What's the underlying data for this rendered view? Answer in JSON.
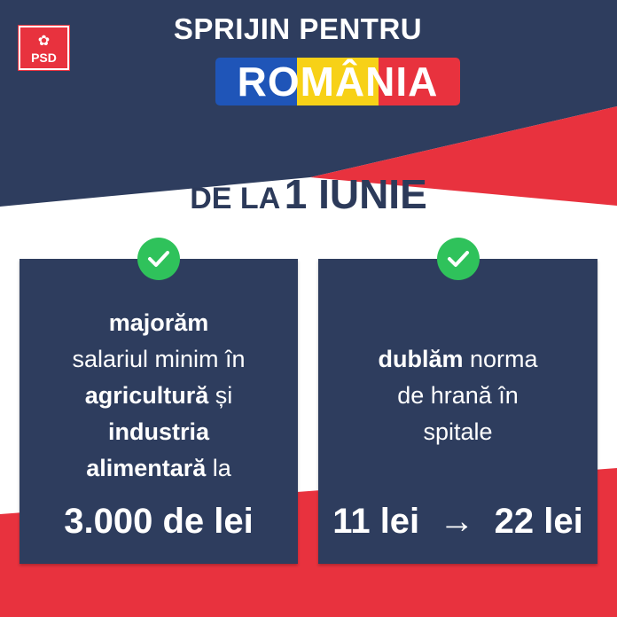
{
  "colors": {
    "navy": "#2e3d5e",
    "red": "#e8323e",
    "flag_blue": "#1f55b8",
    "flag_yellow": "#f7d117",
    "flag_red": "#e8323e",
    "check_green": "#2fc25b"
  },
  "logo": {
    "text": "PSD",
    "icon": "rose-icon"
  },
  "header": {
    "line1": "SPRIJIN PENTRU",
    "line2": "ROMÂNIA"
  },
  "date": {
    "prefix": "DE LA",
    "value": "1 IUNIE"
  },
  "cards": [
    {
      "icon": "check-icon",
      "lines": [
        [
          {
            "t": "majorăm",
            "b": true
          }
        ],
        [
          {
            "t": "salariul minim în",
            "b": false
          }
        ],
        [
          {
            "t": "agricultură",
            "b": true
          },
          {
            "t": " și",
            "b": false
          }
        ],
        [
          {
            "t": "industria",
            "b": true
          }
        ],
        [
          {
            "t": "alimentară",
            "b": true
          },
          {
            "t": " la",
            "b": false
          }
        ]
      ],
      "highlight": "3.000 de lei"
    },
    {
      "icon": "check-icon",
      "lines": [
        [
          {
            "t": "dublăm",
            "b": true
          },
          {
            "t": " norma",
            "b": false
          }
        ],
        [
          {
            "t": "de hrană în",
            "b": false
          }
        ],
        [
          {
            "t": "spitale",
            "b": false
          }
        ]
      ],
      "highlight": "11 lei  →  22 lei"
    }
  ]
}
